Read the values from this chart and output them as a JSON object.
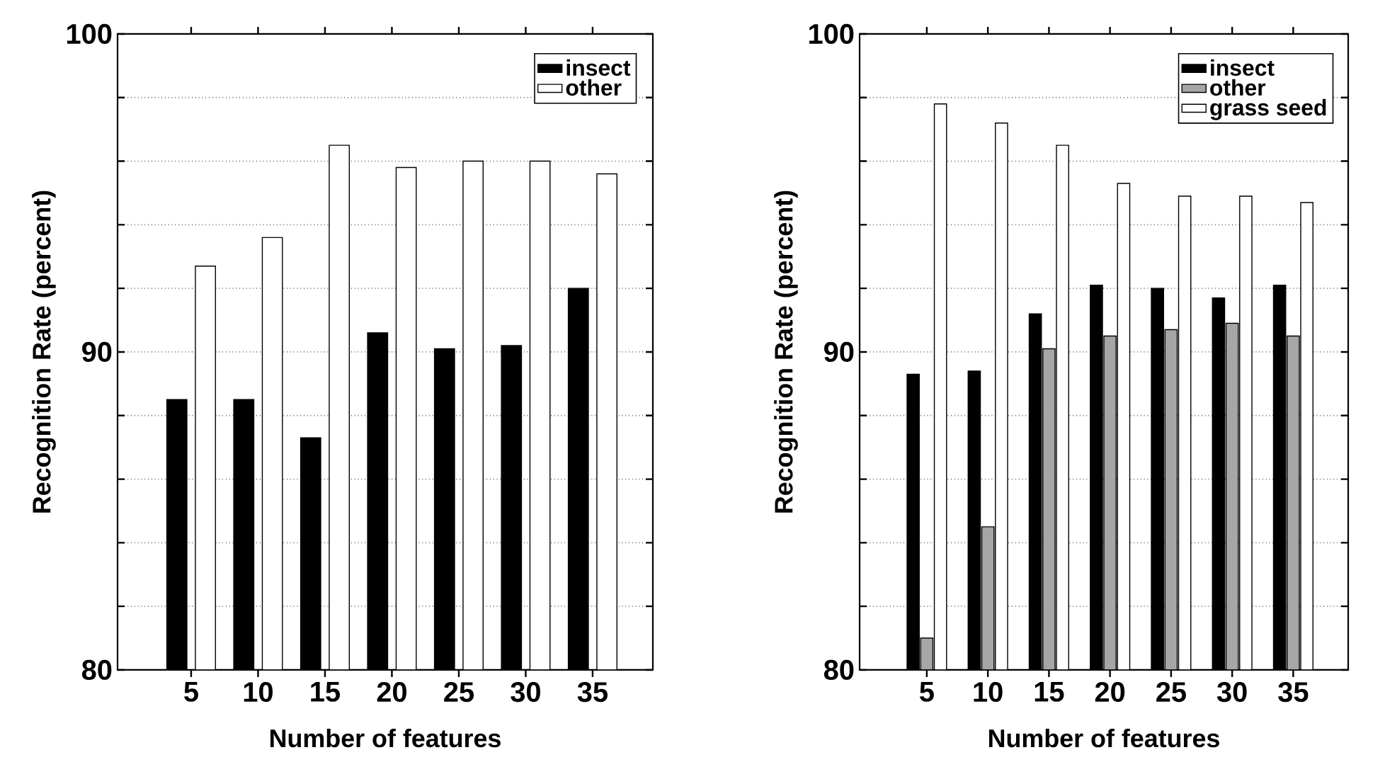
{
  "chart_data": [
    {
      "type": "bar",
      "categories": [
        "5",
        "10",
        "15",
        "20",
        "25",
        "30",
        "35"
      ],
      "series": [
        {
          "name": "insect",
          "color": "#000000",
          "values": [
            88.5,
            88.5,
            87.3,
            90.6,
            90.1,
            90.2,
            92.0
          ]
        },
        {
          "name": "other",
          "color": "#ffffff",
          "values": [
            92.7,
            93.6,
            96.5,
            95.8,
            96.0,
            96.0,
            95.6
          ]
        }
      ],
      "xlabel": "Number of features",
      "ylabel": "Recognition Rate (percent)",
      "ylim": [
        80,
        100
      ],
      "yticks": [
        80,
        {
          "value": 82,
          "label": null
        },
        {
          "value": 84,
          "label": null
        },
        {
          "value": 86,
          "label": null
        },
        {
          "value": 88,
          "label": null
        },
        90,
        {
          "value": 92,
          "label": null
        },
        {
          "value": 94,
          "label": null
        },
        {
          "value": 96,
          "label": null
        },
        {
          "value": 98,
          "label": null
        },
        100
      ],
      "grid": "y",
      "legend": "top right"
    },
    {
      "type": "bar",
      "categories": [
        "5",
        "10",
        "15",
        "20",
        "25",
        "30",
        "35"
      ],
      "series": [
        {
          "name": "insect",
          "color": "#000000",
          "values": [
            89.3,
            89.4,
            91.2,
            92.1,
            92.0,
            91.7,
            92.1
          ]
        },
        {
          "name": "other",
          "color": "#a6a6a6",
          "values": [
            81.0,
            84.5,
            90.1,
            90.5,
            90.7,
            90.9,
            90.5
          ]
        },
        {
          "name": "grass seed",
          "color": "#ffffff",
          "values": [
            97.8,
            97.2,
            96.5,
            95.3,
            94.9,
            94.9,
            94.7
          ]
        }
      ],
      "xlabel": "Number of features",
      "ylabel": "Recognition Rate (percent)",
      "ylim": [
        80,
        100
      ],
      "yticks": [
        80,
        {
          "value": 82,
          "label": null
        },
        {
          "value": 84,
          "label": null
        },
        {
          "value": 86,
          "label": null
        },
        {
          "value": 88,
          "label": null
        },
        90,
        {
          "value": 92,
          "label": null
        },
        {
          "value": 94,
          "label": null
        },
        {
          "value": 96,
          "label": null
        },
        {
          "value": 98,
          "label": null
        },
        100
      ],
      "grid": "y",
      "legend": "top right"
    }
  ]
}
